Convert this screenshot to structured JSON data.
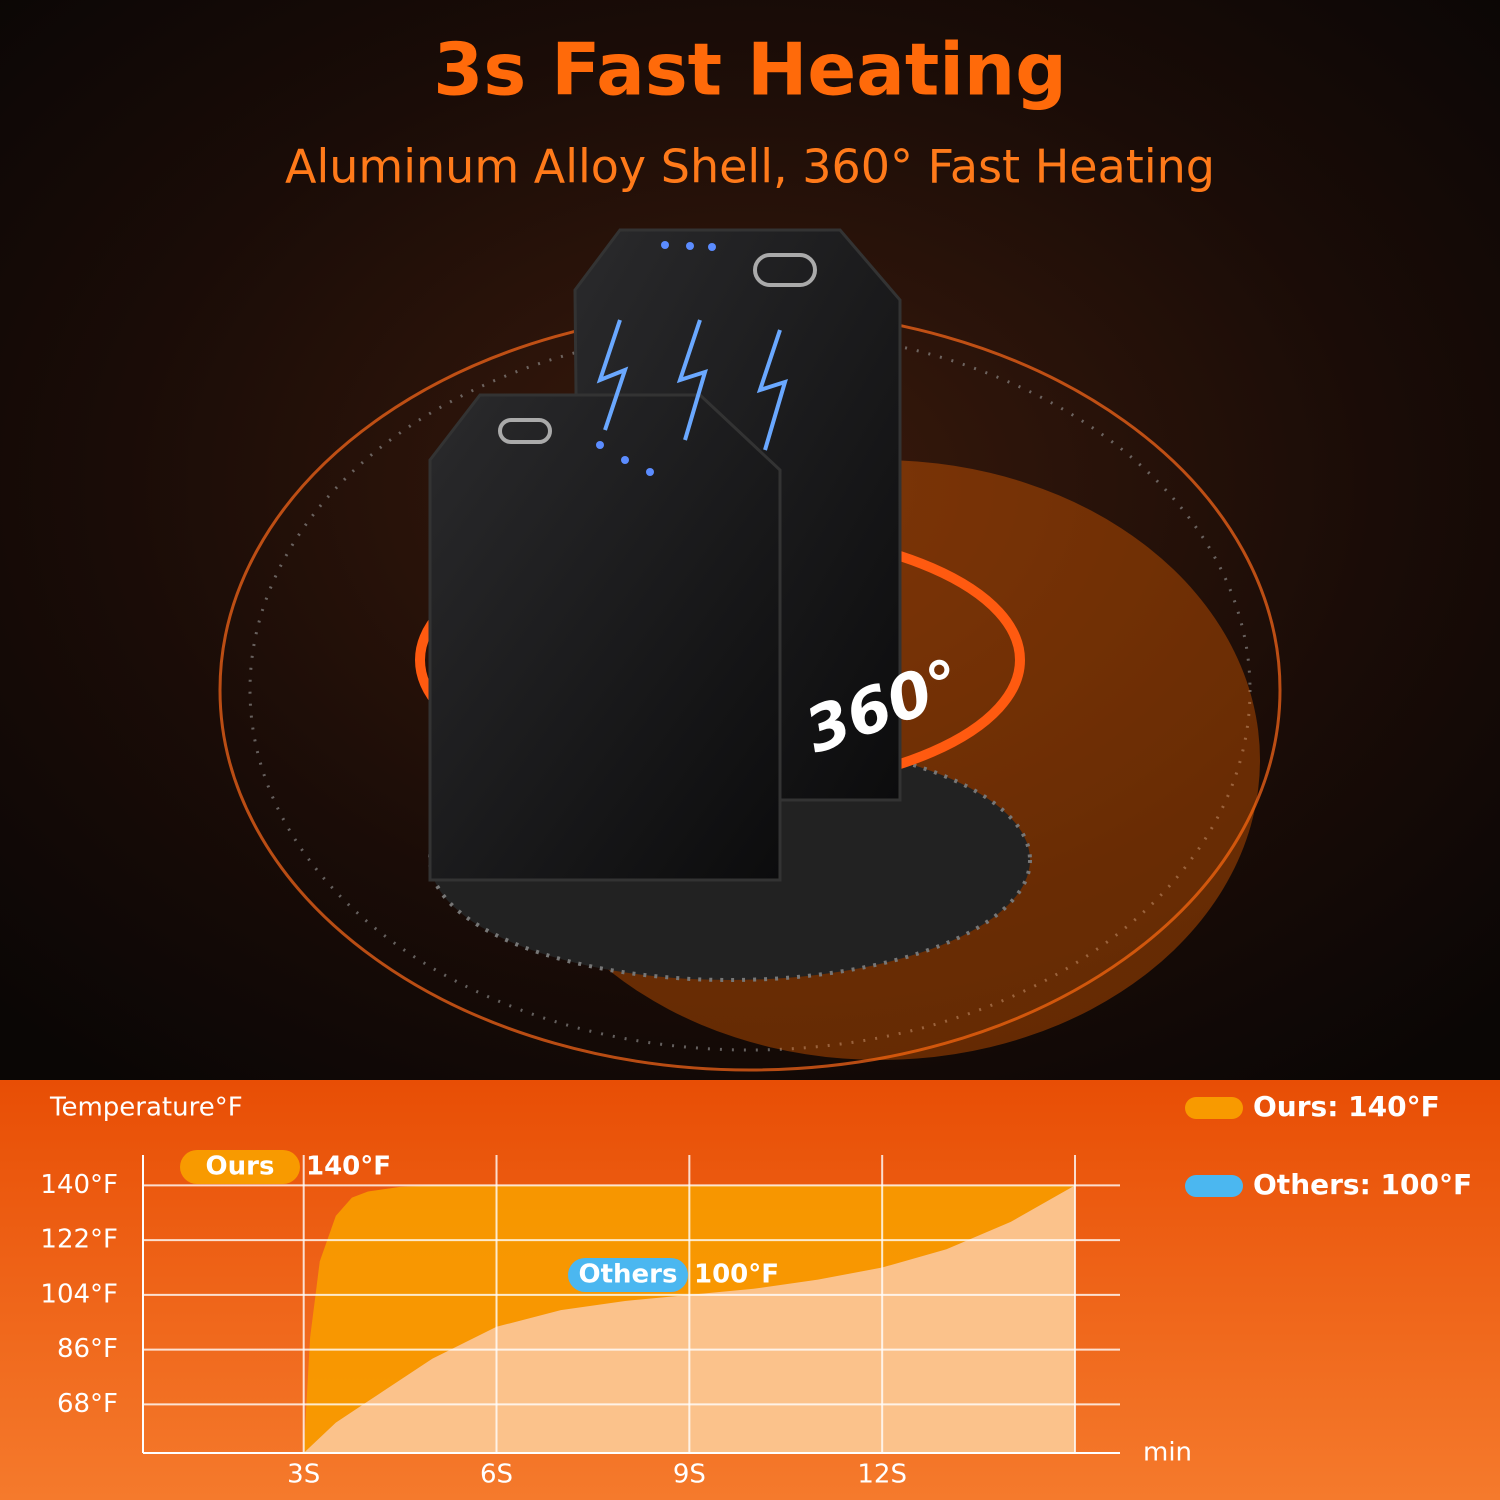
{
  "header": {
    "title": "3s Fast Heating",
    "subtitle": "Aluminum Alloy Shell, 360° Fast Heating",
    "badge": "360°"
  },
  "chart_data": {
    "type": "area",
    "y_label": "Temperature°F",
    "x_label": "min",
    "xlim": [
      0.5,
      15.7
    ],
    "ylim": [
      52,
      150
    ],
    "xticks": [
      {
        "value": 3,
        "label": "3S"
      },
      {
        "value": 6,
        "label": "6S"
      },
      {
        "value": 9,
        "label": "9S"
      },
      {
        "value": 12,
        "label": "12S"
      },
      {
        "value": 15,
        "label": ""
      }
    ],
    "yticks": [
      {
        "value": 68,
        "label": "68°F"
      },
      {
        "value": 86,
        "label": "86°F"
      },
      {
        "value": 104,
        "label": "104°F"
      },
      {
        "value": 122,
        "label": "122°F"
      },
      {
        "value": 140,
        "label": "140°F"
      }
    ],
    "grid": true,
    "legend": "right",
    "series": [
      {
        "name": "Ours: 140°F",
        "tag": "Ours",
        "tag_value": "140°F",
        "color": "#f89a00",
        "x": [
          3,
          3.1,
          3.25,
          3.5,
          3.75,
          4,
          4.5,
          5,
          15
        ],
        "values": [
          52,
          90,
          115,
          130,
          136,
          138,
          139.5,
          140,
          140
        ]
      },
      {
        "name": "Others:  100°F",
        "tag": "Others",
        "tag_value": "100°F",
        "color": "#4bb7f0",
        "x": [
          3,
          3.5,
          4,
          5,
          6,
          7,
          8,
          9,
          10,
          11,
          12,
          13,
          14,
          15
        ],
        "values": [
          52,
          62,
          69,
          83,
          93.5,
          99,
          102,
          104,
          106,
          109,
          113,
          119,
          128,
          140
        ]
      }
    ]
  }
}
